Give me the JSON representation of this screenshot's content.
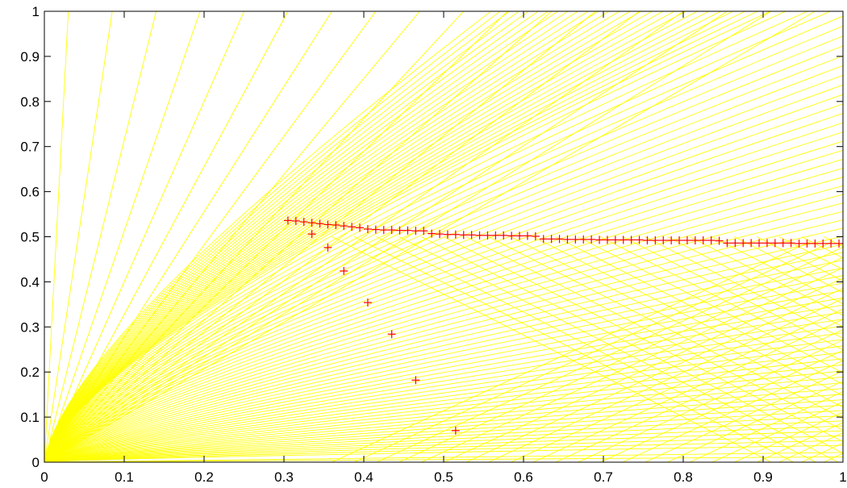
{
  "chart_data": {
    "type": "line",
    "title": "",
    "xlabel": "",
    "ylabel": "",
    "xlim": [
      0,
      1
    ],
    "ylim": [
      0,
      1
    ],
    "grid": false,
    "legend": "none",
    "x_ticks": [
      "0",
      "0.1",
      "0.2",
      "0.3",
      "0.4",
      "0.5",
      "0.6",
      "0.7",
      "0.8",
      "0.9",
      "1"
    ],
    "y_ticks": [
      "0",
      "0.1",
      "0.2",
      "0.3",
      "0.4",
      "0.5",
      "0.6",
      "0.7",
      "0.8",
      "0.9",
      "1"
    ],
    "colors": {
      "characteristics": "#ffff00",
      "markers": "#ff0000",
      "axes": "#000000"
    },
    "series": [
      {
        "type": "scatter",
        "marker": "plus",
        "x": [
          0.305,
          0.315,
          0.325,
          0.335,
          0.345,
          0.355,
          0.365,
          0.375,
          0.385,
          0.395,
          0.405,
          0.415,
          0.425,
          0.435,
          0.445,
          0.455,
          0.465,
          0.475,
          0.485,
          0.495,
          0.505,
          0.515,
          0.525,
          0.535,
          0.545,
          0.555,
          0.565,
          0.575,
          0.585,
          0.595,
          0.605,
          0.615,
          0.625,
          0.635,
          0.645,
          0.655,
          0.665,
          0.675,
          0.685,
          0.695,
          0.705,
          0.715,
          0.725,
          0.735,
          0.745,
          0.755,
          0.765,
          0.775,
          0.785,
          0.795,
          0.805,
          0.815,
          0.825,
          0.835,
          0.845,
          0.855,
          0.865,
          0.875,
          0.885,
          0.895,
          0.905,
          0.915,
          0.925,
          0.935,
          0.945,
          0.955,
          0.965,
          0.975,
          0.985,
          0.995,
          0.335,
          0.355,
          0.375,
          0.405,
          0.435,
          0.465,
          0.515
        ],
        "y": [
          0.536,
          0.535,
          0.533,
          0.531,
          0.529,
          0.527,
          0.526,
          0.524,
          0.522,
          0.52,
          0.517,
          0.516,
          0.515,
          0.515,
          0.514,
          0.514,
          0.513,
          0.513,
          0.507,
          0.506,
          0.505,
          0.505,
          0.504,
          0.504,
          0.503,
          0.503,
          0.503,
          0.503,
          0.502,
          0.502,
          0.502,
          0.501,
          0.495,
          0.495,
          0.495,
          0.494,
          0.494,
          0.494,
          0.494,
          0.493,
          0.493,
          0.493,
          0.493,
          0.493,
          0.493,
          0.492,
          0.492,
          0.492,
          0.492,
          0.492,
          0.492,
          0.492,
          0.492,
          0.492,
          0.491,
          0.486,
          0.486,
          0.486,
          0.486,
          0.486,
          0.486,
          0.486,
          0.486,
          0.486,
          0.485,
          0.485,
          0.485,
          0.485,
          0.485,
          0.485,
          0.506,
          0.476,
          0.424,
          0.354,
          0.284,
          0.182,
          0.07
        ]
      }
    ]
  }
}
